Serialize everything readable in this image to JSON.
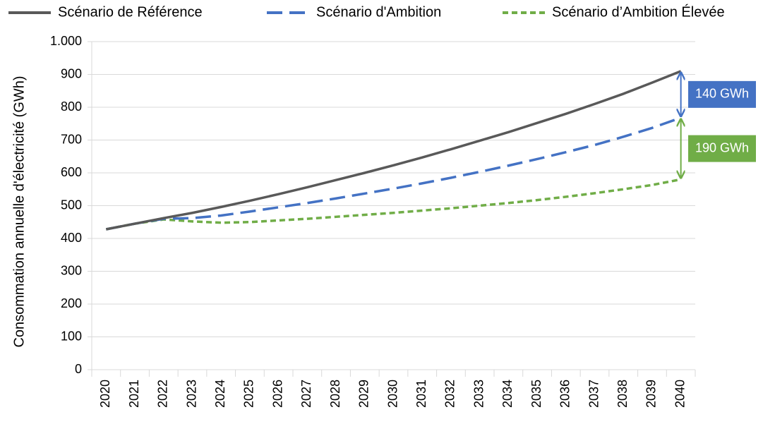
{
  "chart_data": {
    "type": "line",
    "y_label": "Consommation annuelle d'électricité (GWh)",
    "categories": [
      "2020",
      "2021",
      "2022",
      "2023",
      "2024",
      "2025",
      "2026",
      "2027",
      "2028",
      "2029",
      "2030",
      "2031",
      "2032",
      "2033",
      "2034",
      "2035",
      "2036",
      "2037",
      "2038",
      "2039",
      "2040"
    ],
    "series": [
      {
        "name": "Scénario de Référence",
        "color": "#595959",
        "dash": "none",
        "values": [
          428,
          445,
          462,
          478,
          496,
          515,
          535,
          556,
          578,
          600,
          623,
          647,
          672,
          698,
          724,
          752,
          780,
          810,
          841,
          875,
          910
        ]
      },
      {
        "name": "Scénario d'Ambition",
        "color": "#4472c4",
        "dash": "22,10",
        "values": [
          428,
          445,
          460,
          462,
          470,
          482,
          495,
          508,
          522,
          537,
          552,
          568,
          585,
          603,
          622,
          642,
          663,
          685,
          710,
          737,
          768
        ]
      },
      {
        "name": "Scénario d’Ambition Élevée",
        "color": "#70ad47",
        "dash": "8,5",
        "values": [
          428,
          445,
          458,
          452,
          448,
          450,
          455,
          460,
          466,
          472,
          478,
          485,
          492,
          500,
          508,
          517,
          527,
          538,
          550,
          563,
          580
        ]
      }
    ],
    "ylim": [
      0,
      1000
    ],
    "yticks": [
      0,
      100,
      200,
      300,
      400,
      500,
      600,
      700,
      800,
      900,
      {
        "value": 1000,
        "label": "1.000"
      }
    ],
    "grid": true,
    "legend": "top",
    "annotations": [
      {
        "text": "140 GWh",
        "color": "#4472c4"
      },
      {
        "text": "190 GWh",
        "color": "#70ad47"
      }
    ]
  }
}
